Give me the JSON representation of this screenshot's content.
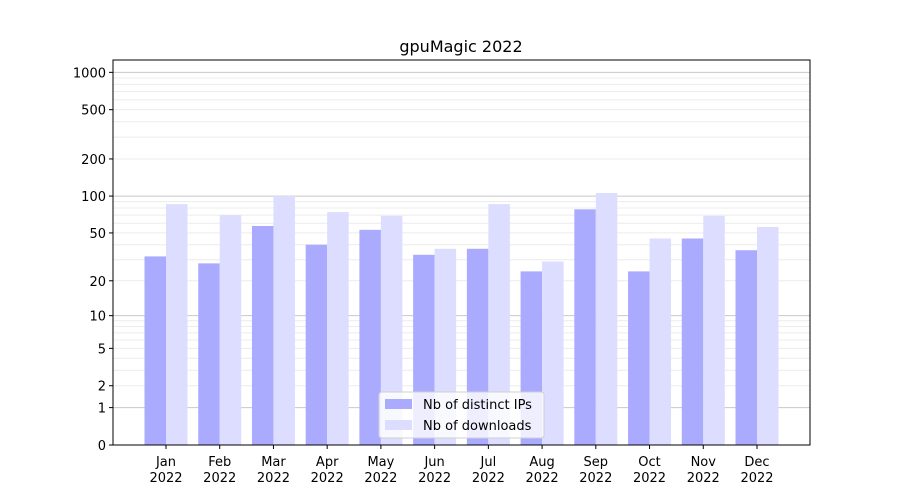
{
  "chart_data": {
    "type": "bar",
    "title": "gpuMagic 2022",
    "xlabel": "",
    "ylabel": "",
    "yscale": "symlog",
    "ylim": [
      0,
      1200
    ],
    "yticks": [
      0,
      1,
      2,
      5,
      10,
      20,
      50,
      100,
      200,
      500,
      1000
    ],
    "ytick_labels": [
      "0",
      "1",
      "2",
      "5",
      "10",
      "20",
      "50",
      "100",
      "200",
      "500",
      "1000"
    ],
    "grid": true,
    "legend_position": "lower center",
    "categories": [
      [
        "Jan",
        "2022"
      ],
      [
        "Feb",
        "2022"
      ],
      [
        "Mar",
        "2022"
      ],
      [
        "Apr",
        "2022"
      ],
      [
        "May",
        "2022"
      ],
      [
        "Jun",
        "2022"
      ],
      [
        "Jul",
        "2022"
      ],
      [
        "Aug",
        "2022"
      ],
      [
        "Sep",
        "2022"
      ],
      [
        "Oct",
        "2022"
      ],
      [
        "Nov",
        "2022"
      ],
      [
        "Dec",
        "2022"
      ]
    ],
    "series": [
      {
        "name": "Nb of distinct IPs",
        "color": "#aaaaff",
        "values": [
          32,
          28,
          57,
          40,
          53,
          33,
          37,
          24,
          78,
          24,
          45,
          36
        ]
      },
      {
        "name": "Nb of downloads",
        "color": "#ddddff",
        "values": [
          86,
          70,
          100,
          74,
          69,
          37,
          86,
          29,
          106,
          45,
          69,
          56
        ]
      }
    ]
  }
}
